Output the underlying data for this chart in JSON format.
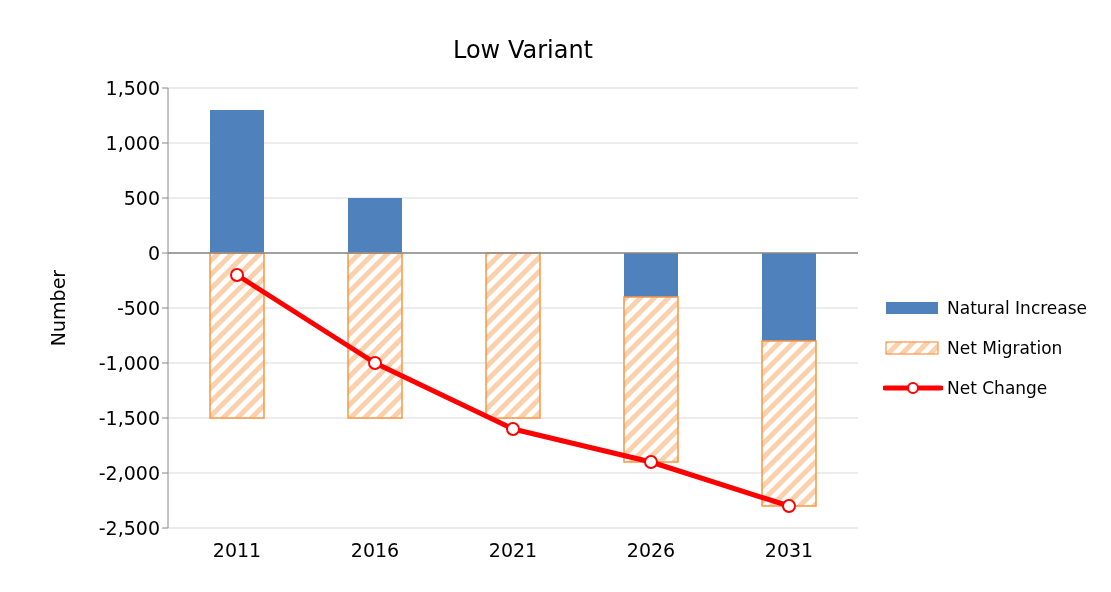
{
  "chart_data": {
    "type": "bar",
    "title": "Low Variant",
    "ylabel": "Number",
    "categories": [
      "2011",
      "2016",
      "2021",
      "2026",
      "2031"
    ],
    "stacked": true,
    "series": [
      {
        "name": "Natural Increase",
        "color": "#4f81bd",
        "values": [
          1300,
          500,
          0,
          -400,
          -800
        ]
      },
      {
        "name": "Net Migration",
        "color": "#f79646",
        "values": [
          -1500,
          -1500,
          -1500,
          -1500,
          -1500
        ]
      },
      {
        "name": "Net Change",
        "type": "line",
        "color": "#ff0000",
        "values": [
          -200,
          -1000,
          -1600,
          -1900,
          -2300
        ]
      }
    ],
    "ylim": [
      -2500,
      1500
    ],
    "yticks": [
      {
        "value": -2500,
        "label": "-2,500"
      },
      {
        "value": -2000,
        "label": "-2,000"
      },
      {
        "value": -1500,
        "label": "-1,500"
      },
      {
        "value": -1000,
        "label": "-1,000"
      },
      -500,
      0,
      500,
      {
        "value": 1000,
        "label": "1,000"
      },
      {
        "value": 1500,
        "label": "1,500"
      }
    ],
    "grid": "y",
    "legend": "right",
    "marker": "circle",
    "line_style": "solid"
  }
}
